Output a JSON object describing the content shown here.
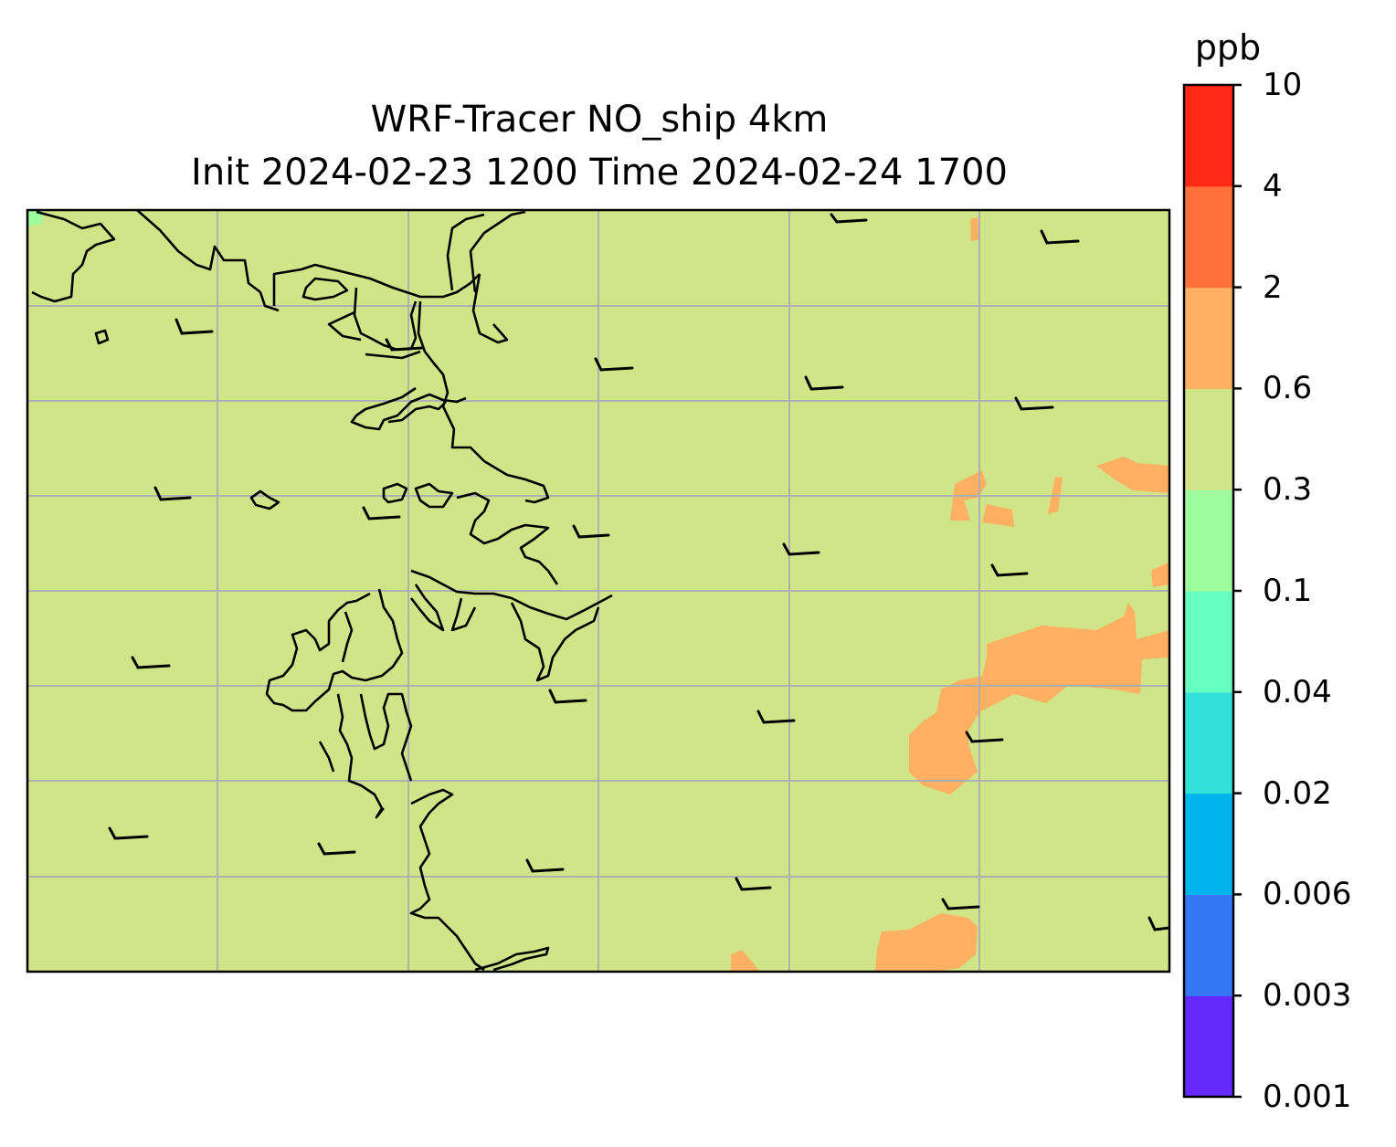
{
  "title": {
    "line1": "WRF-Tracer NO_ship 4km",
    "line2": "Init 2024-02-23 1200 Time 2024-02-24 1700"
  },
  "colorbar": {
    "unit": "ppb",
    "ticks": [
      "0.001",
      "0.003",
      "0.006",
      "0.02",
      "0.04",
      "0.1",
      "0.3",
      "0.6",
      "2",
      "4",
      "10"
    ],
    "colors": [
      "#6629fb",
      "#3377f3",
      "#00b4ec",
      "#33e0da",
      "#66fdc0",
      "#9efe9e",
      "#d0e488",
      "#ffb062",
      "#ff703b",
      "#ff2916"
    ]
  },
  "map": {
    "background_level": "0.3 - 0.6",
    "background_color": "#d0e488",
    "patch_color": "#ffb062",
    "corner_color": "#9efe9e",
    "gridline_color": "#b0b0b0",
    "coastline_color": "#000000"
  }
}
